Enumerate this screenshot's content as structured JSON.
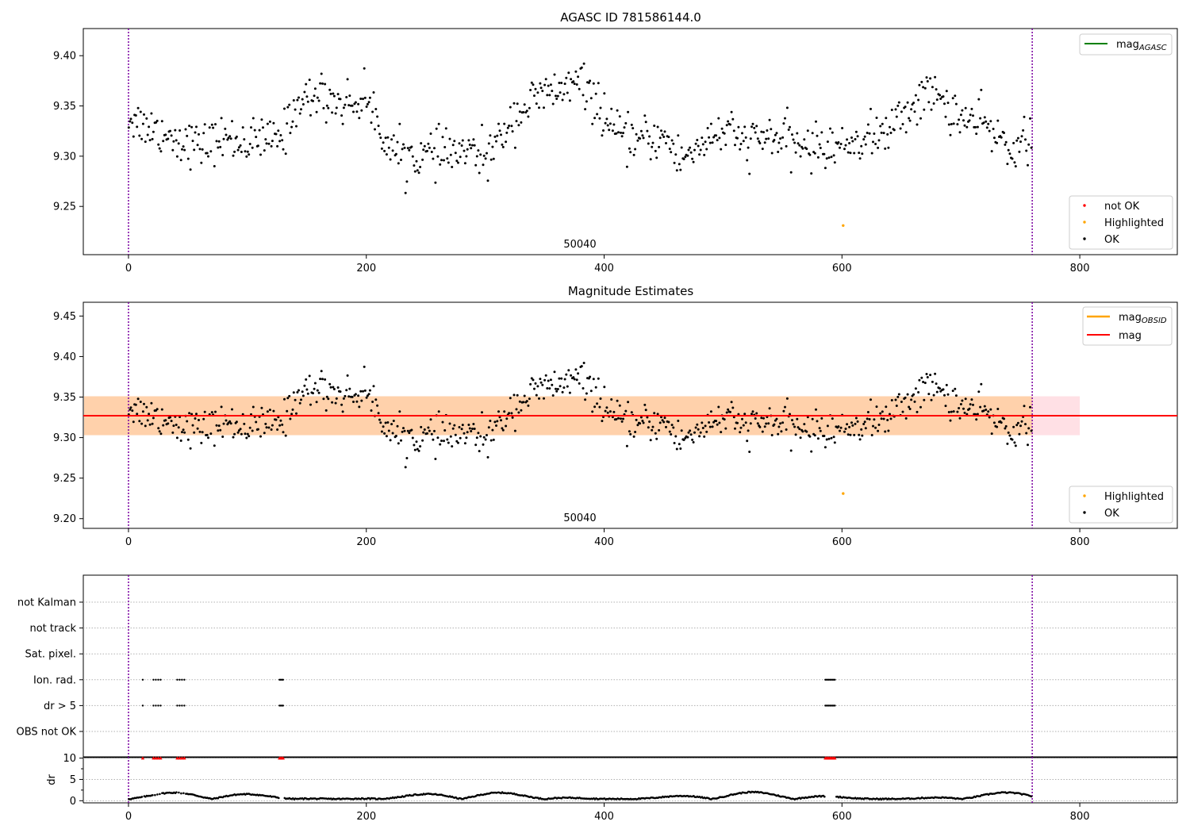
{
  "chart_data": [
    {
      "type": "scatter",
      "title": "AGASC ID 781586144.0",
      "xlabel": "",
      "ylabel": "",
      "xlim": [
        -38,
        882
      ],
      "ylim": [
        9.202,
        9.427
      ],
      "xticks": [
        0,
        200,
        400,
        600,
        800
      ],
      "yticks": [
        9.25,
        9.3,
        9.35,
        9.4
      ],
      "ytick_labels": [
        "9.25",
        "9.30",
        "9.35",
        "9.40"
      ],
      "obsid_boundaries": [
        0,
        760
      ],
      "obsid_label": "50040",
      "obsid_label_x": 380,
      "legend_lines": {
        "placement": "top-right",
        "entries": [
          {
            "label": "mag",
            "sub": "AGASC",
            "color": "#008000"
          }
        ]
      },
      "legend_points": {
        "placement": "bottom-right",
        "entries": [
          {
            "label": "not OK",
            "color": "#ff0000"
          },
          {
            "label": "Highlighted",
            "color": "#ffa500"
          },
          {
            "label": "OK",
            "color": "#000000"
          }
        ]
      },
      "highlighted_points": [
        {
          "x": 601,
          "y": 9.231
        }
      ],
      "grid": false
    },
    {
      "type": "scatter",
      "title": "Magnitude Estimates",
      "xlabel": "",
      "ylabel": "",
      "xlim": [
        -38,
        882
      ],
      "ylim": [
        9.188,
        9.467
      ],
      "xticks": [
        0,
        200,
        400,
        600,
        800
      ],
      "yticks": [
        9.2,
        9.25,
        9.3,
        9.35,
        9.4,
        9.45
      ],
      "ytick_labels": [
        "9.20",
        "9.25",
        "9.30",
        "9.35",
        "9.40",
        "9.45"
      ],
      "obsid_boundaries": [
        0,
        760
      ],
      "obsid_label": "50040",
      "obsid_label_x": 380,
      "mag_line": 9.327,
      "mag_band": [
        9.303,
        9.351
      ],
      "mag_band_x": [
        -38,
        800
      ],
      "legend_lines": {
        "placement": "top-right",
        "entries": [
          {
            "label": "mag",
            "sub": "OBSID",
            "color": "#ffa500"
          },
          {
            "label": "mag",
            "sub": "",
            "color": "#ff0000"
          }
        ]
      },
      "legend_points": {
        "placement": "bottom-right",
        "entries": [
          {
            "label": "Highlighted",
            "color": "#ffa500"
          },
          {
            "label": "OK",
            "color": "#000000"
          }
        ]
      },
      "highlighted_points": [
        {
          "x": 601,
          "y": 9.231
        }
      ],
      "grid": false
    },
    {
      "type": "scatter",
      "title": "",
      "xlim": [
        -38,
        882
      ],
      "flag_categories": [
        "not Kalman",
        "not track",
        "Sat. pixel.",
        "Ion. rad.",
        "dr > 5",
        "OBS not OK"
      ],
      "flag_points": {
        "Ion. rad.": [
          12,
          21,
          23,
          25,
          27,
          41,
          43,
          45,
          47,
          127,
          128,
          129,
          130,
          586,
          587,
          588,
          589,
          590,
          591,
          592,
          593,
          594
        ],
        "dr > 5": [
          12,
          21,
          23,
          25,
          27,
          41,
          43,
          45,
          47,
          127,
          128,
          129,
          130,
          586,
          587,
          588,
          589,
          590,
          591,
          592,
          593,
          594
        ]
      },
      "grid": true
    },
    {
      "type": "scatter",
      "title": "",
      "xlabel": "",
      "ylabel": "dr",
      "xlim": [
        -38,
        882
      ],
      "ylim": [
        -0.5,
        10.3
      ],
      "xticks": [
        0,
        200,
        400,
        600,
        800
      ],
      "yticks": [
        0,
        5,
        10
      ],
      "ytick_labels": [
        "0",
        "5",
        "10"
      ],
      "clipped_at": 10,
      "clipped_points": [
        12,
        21,
        23,
        25,
        27,
        41,
        43,
        45,
        47,
        127,
        128,
        129,
        130,
        586,
        587,
        588,
        589,
        590,
        591,
        592,
        593,
        594
      ],
      "grid": true
    }
  ]
}
